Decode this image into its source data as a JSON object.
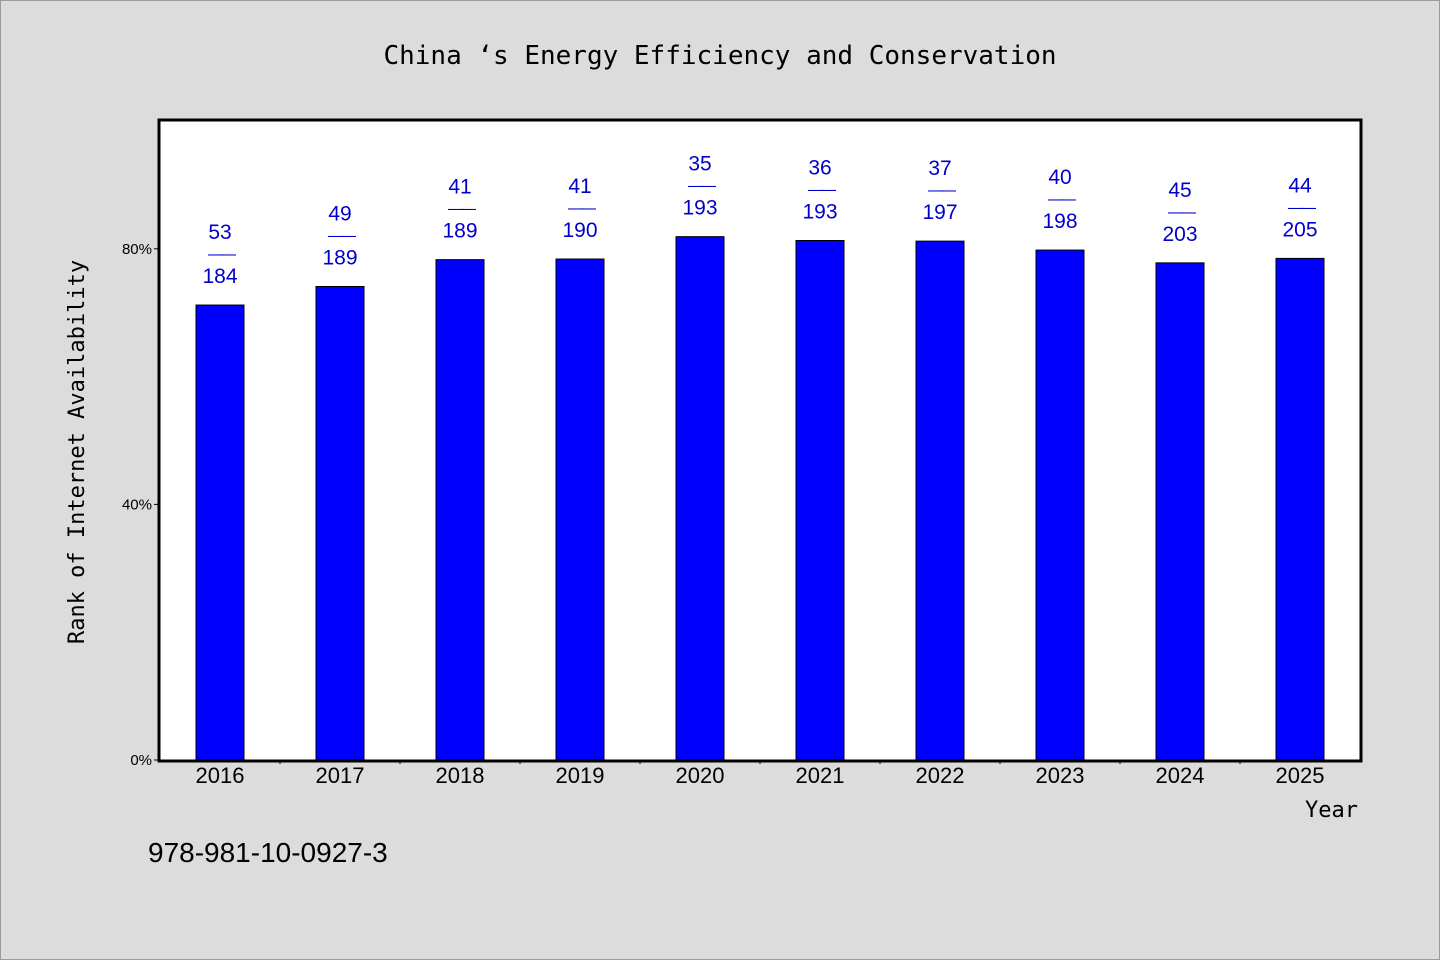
{
  "chart_data": {
    "type": "bar",
    "title": "China ‘s Energy Efficiency and Conservation",
    "xlabel": "Year",
    "ylabel": "Rank of Internet Availability",
    "categories": [
      "2016",
      "2017",
      "2018",
      "2019",
      "2020",
      "2021",
      "2022",
      "2023",
      "2024",
      "2025"
    ],
    "values": [
      71.2,
      74.1,
      78.3,
      78.4,
      81.9,
      81.3,
      81.2,
      79.8,
      77.8,
      78.5
    ],
    "value_unit": "%",
    "data_labels": [
      {
        "top": "53",
        "sep": "——",
        "bottom": "184"
      },
      {
        "top": "49",
        "sep": "——",
        "bottom": "189"
      },
      {
        "top": "41",
        "sep": "——",
        "bottom": "189"
      },
      {
        "top": "41",
        "sep": "——",
        "bottom": "190"
      },
      {
        "top": "35",
        "sep": "——",
        "bottom": "193"
      },
      {
        "top": "36",
        "sep": "——",
        "bottom": "193"
      },
      {
        "top": "37",
        "sep": "——",
        "bottom": "197"
      },
      {
        "top": "40",
        "sep": "——",
        "bottom": "198"
      },
      {
        "top": "45",
        "sep": "——",
        "bottom": "203"
      },
      {
        "top": "44",
        "sep": "——",
        "bottom": "205"
      }
    ],
    "yticks": [
      0,
      40,
      80
    ],
    "ytick_labels": [
      "0%",
      "40%",
      "80%"
    ],
    "ylim": [
      0,
      100
    ],
    "grid": false,
    "colors": {
      "bar": "#0000ff",
      "label": "#0000cc",
      "text": "#000000",
      "background": "#dcdcdc",
      "plot_background": "#ffffff"
    }
  },
  "footer": {
    "isbn": "978-981-10-0927-3"
  }
}
